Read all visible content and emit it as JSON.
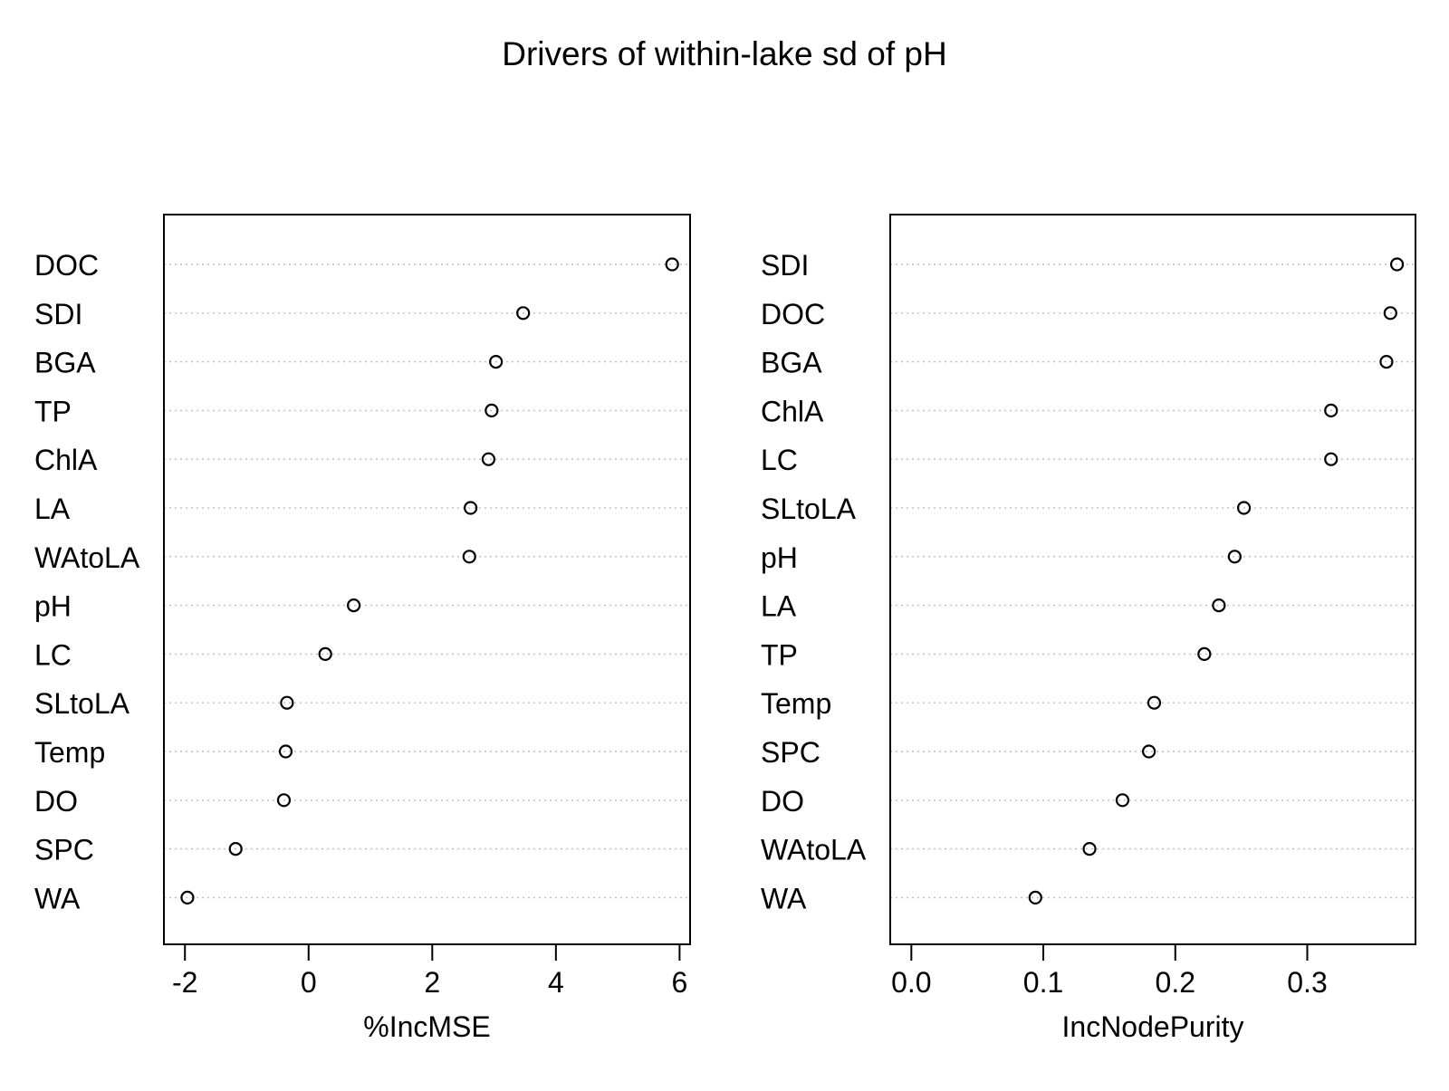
{
  "title": "Drivers of within-lake sd of pH",
  "chart_data": [
    {
      "type": "scatter",
      "xlabel": "%IncMSE",
      "xlim": [
        -2.34,
        6.17
      ],
      "ticks": [
        -2,
        0,
        2,
        4,
        6
      ],
      "tick_labels": [
        "-2",
        "0",
        "2",
        "4",
        "6"
      ],
      "categories": [
        "DOC",
        "SDI",
        "BGA",
        "TP",
        "ChlA",
        "LA",
        "WAtoLA",
        "pH",
        "LC",
        "SLtoLA",
        "Temp",
        "DO",
        "SPC",
        "WA"
      ],
      "values": [
        5.88,
        3.47,
        3.03,
        2.96,
        2.91,
        2.62,
        2.6,
        0.73,
        0.27,
        -0.35,
        -0.37,
        -0.4,
        -1.18,
        -1.96
      ],
      "grid": "dotted",
      "marker": "open circle"
    },
    {
      "type": "scatter",
      "xlabel": "IncNodePurity",
      "xlim": [
        -0.016,
        0.382
      ],
      "ticks": [
        0.0,
        0.1,
        0.2,
        0.3
      ],
      "tick_labels": [
        "0.0",
        "0.1",
        "0.2",
        "0.3"
      ],
      "categories": [
        "SDI",
        "DOC",
        "BGA",
        "ChlA",
        "LC",
        "SLtoLA",
        "pH",
        "LA",
        "TP",
        "Temp",
        "SPC",
        "DO",
        "WAtoLA",
        "WA"
      ],
      "values": [
        0.368,
        0.363,
        0.36,
        0.318,
        0.318,
        0.252,
        0.245,
        0.233,
        0.222,
        0.184,
        0.18,
        0.16,
        0.135,
        0.094
      ],
      "grid": "dotted",
      "marker": "open circle"
    }
  ]
}
